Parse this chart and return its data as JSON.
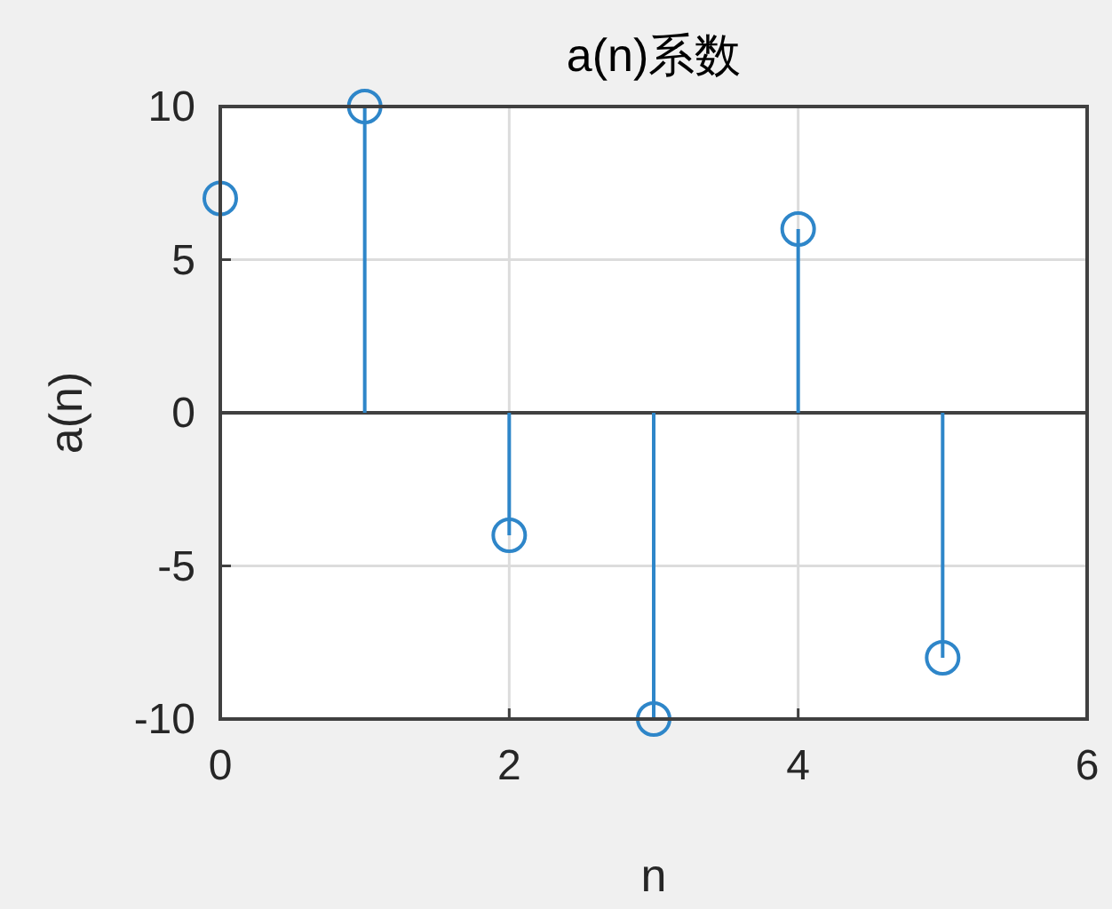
{
  "chart_data": {
    "type": "lollipop",
    "title": "a(n)系数",
    "xlabel": "n",
    "ylabel": "a(n)",
    "x": [
      0,
      1,
      2,
      3,
      4,
      5
    ],
    "values": [
      7,
      10,
      -4,
      -10,
      6,
      -8
    ],
    "color": "#2e86c9",
    "xlim": [
      0,
      6
    ],
    "ylim": [
      -10,
      10
    ],
    "xticks": [
      0,
      2,
      4,
      6
    ],
    "yticks": [
      -10,
      -5,
      0,
      5,
      10
    ],
    "grid": true,
    "marker": "circle"
  }
}
